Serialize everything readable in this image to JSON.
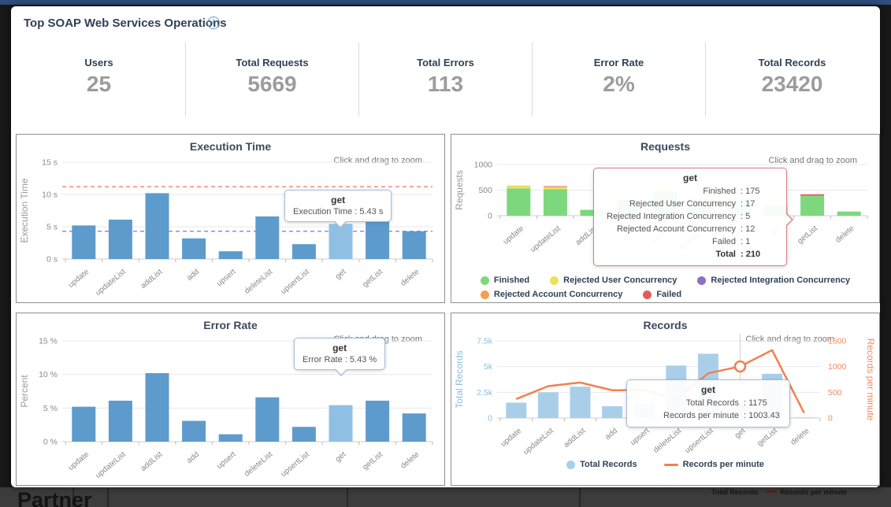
{
  "page": {
    "title": "Top SOAP Web Services Operations",
    "zoom_hint": "Click and drag to zoom"
  },
  "background": {
    "partner_label": "Partner",
    "legend_total_records": "Total Records",
    "legend_records_per_minute": "Records per minute"
  },
  "kpis": [
    {
      "label": "Users",
      "value": "25"
    },
    {
      "label": "Total Requests",
      "value": "5669"
    },
    {
      "label": "Total Errors",
      "value": "113"
    },
    {
      "label": "Error Rate",
      "value": "2%"
    },
    {
      "label": "Total Records",
      "value": "23420"
    }
  ],
  "colors": {
    "accent_bar": "#2f4d7f",
    "bar_blue": "#5e9bcd",
    "bar_blue_highlight": "#8fc0e4",
    "records_bar": "#a9cfe8",
    "records_line": "#f0814f"
  },
  "chart_data": [
    {
      "id": "execution-time",
      "type": "bar",
      "title": "Execution Time",
      "ylabel": "Execution Time",
      "ylim": [
        0,
        15
      ],
      "yticks": [
        "0 s",
        "5 s",
        "10 s",
        "15 s"
      ],
      "categories": [
        "update",
        "updateList",
        "addList",
        "add",
        "upsert",
        "deleteList",
        "upsertList",
        "get",
        "getList",
        "delete"
      ],
      "values": [
        5.2,
        6.1,
        10.2,
        3.2,
        1.2,
        6.6,
        2.3,
        5.43,
        6.1,
        4.3
      ],
      "bar_color": "#5e9bcd",
      "highlight_color": "#8fc0e4",
      "highlight_index": 7,
      "ref_lines": [
        {
          "value": 11.2,
          "color": "#f2908a"
        },
        {
          "value": 4.3,
          "color": "#8b8fdd"
        }
      ],
      "tooltip": {
        "title": "get",
        "rows": [
          {
            "label": "Execution Time",
            "value": "5.43 s"
          }
        ]
      }
    },
    {
      "id": "requests",
      "type": "stacked",
      "title": "Requests",
      "ylabel": "Requests",
      "ylim": [
        0,
        1000
      ],
      "yticks": [
        "0",
        "500",
        "1000"
      ],
      "categories": [
        "update",
        "updateList",
        "addList",
        "add",
        "upsert",
        "deleteList",
        "upsertList",
        "get",
        "getList",
        "delete"
      ],
      "series": [
        {
          "name": "Finished",
          "color": "#7dd87d",
          "values": [
            535,
            520,
            115,
            235,
            480,
            320,
            310,
            175,
            385,
            82
          ]
        },
        {
          "name": "Rejected User Concurrency",
          "color": "#efe156",
          "values": [
            48,
            38,
            0,
            25,
            15,
            0,
            8,
            17,
            0,
            0
          ]
        },
        {
          "name": "Rejected Integration Concurrency",
          "color": "#8d6fc4",
          "values": [
            0,
            5,
            0,
            0,
            0,
            0,
            0,
            5,
            0,
            0
          ]
        },
        {
          "name": "Rejected Account Concurrency",
          "color": "#f4a04c",
          "values": [
            5,
            12,
            0,
            15,
            0,
            0,
            0,
            12,
            6,
            0
          ]
        },
        {
          "name": "Failed",
          "color": "#e25c5c",
          "values": [
            0,
            5,
            0,
            18,
            0,
            8,
            0,
            1,
            28,
            0
          ]
        }
      ],
      "tooltip": {
        "title": "get",
        "rows": [
          {
            "label": "Finished",
            "value": "175"
          },
          {
            "label": "Rejected User Concurrency",
            "value": "17"
          },
          {
            "label": "Rejected Integration Concurrency",
            "value": "5"
          },
          {
            "label": "Rejected Account Concurrency",
            "value": "12"
          },
          {
            "label": "Failed",
            "value": "1"
          },
          {
            "label": "Total",
            "value": "210",
            "bold": true
          }
        ]
      }
    },
    {
      "id": "error-rate",
      "type": "bar",
      "title": "Error Rate",
      "ylabel": "Percent",
      "ylim": [
        0,
        15
      ],
      "yticks": [
        "0 %",
        "5 %",
        "10 %",
        "15 %"
      ],
      "categories": [
        "update",
        "updateList",
        "addList",
        "add",
        "upsert",
        "deleteList",
        "upsertList",
        "get",
        "getList",
        "delete"
      ],
      "values": [
        5.2,
        6.1,
        10.2,
        3.1,
        1.1,
        6.6,
        2.2,
        5.43,
        6.1,
        4.2
      ],
      "bar_color": "#5e9bcd",
      "highlight_color": "#8fc0e4",
      "highlight_index": 7,
      "ref_lines": [],
      "tooltip": {
        "title": "get",
        "rows": [
          {
            "label": "Error Rate",
            "value": "5.43 %"
          }
        ]
      }
    },
    {
      "id": "records",
      "type": "combo",
      "title": "Records",
      "left_axis": {
        "label": "Total Records",
        "color": "#88bede",
        "max": 7500,
        "ticks": [
          "0",
          "2.5k",
          "5k",
          "7.5k"
        ]
      },
      "right_axis": {
        "label": "Records per minute",
        "color": "#f28a5e",
        "max": 1500,
        "ticks": [
          "0",
          "500",
          "1000",
          "1500"
        ]
      },
      "categories": [
        "update",
        "updateList",
        "addList",
        "add",
        "upsert",
        "deleteList",
        "upsertList",
        "get",
        "getList",
        "delete"
      ],
      "bars": {
        "name": "Total Records",
        "color": "#a9cfe8",
        "values": [
          1500,
          2500,
          3050,
          1150,
          1400,
          5100,
          6250,
          1175,
          4300,
          60
        ]
      },
      "line": {
        "name": "Records per minute",
        "color": "#f0814f",
        "values": [
          370,
          620,
          690,
          540,
          545,
          350,
          870,
          1003.43,
          1320,
          100
        ]
      },
      "marker_index": 7,
      "tooltip": {
        "title": "get",
        "rows": [
          {
            "label": "Total Records",
            "value": "1175"
          },
          {
            "label": "Records per minute",
            "value": "1003.43"
          }
        ]
      }
    }
  ]
}
